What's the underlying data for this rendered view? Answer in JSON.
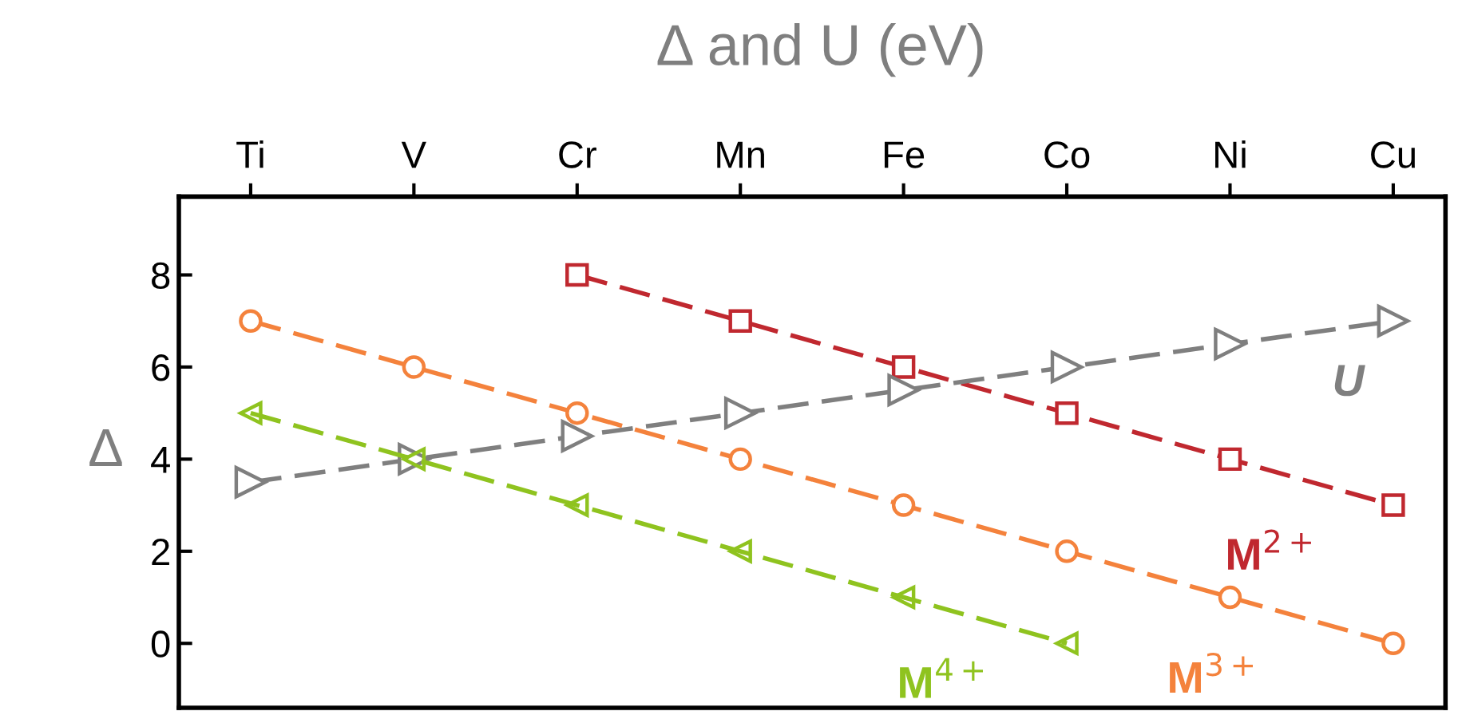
{
  "chart_data": {
    "type": "line",
    "title": "Δ and U (eV)",
    "ylabel": "Δ",
    "categories": [
      "Ti",
      "V",
      "Cr",
      "Mn",
      "Fe",
      "Co",
      "Ni",
      "Cu"
    ],
    "ylim": [
      -1.4,
      9.7
    ],
    "yticks": [
      0,
      2,
      4,
      6,
      8
    ],
    "grid": false,
    "legend": false,
    "line_style": "dashed",
    "series": [
      {
        "name": "M$^{2+}$",
        "color": "#c0282f",
        "marker": "square",
        "values": [
          null,
          null,
          8,
          7,
          6,
          5,
          4,
          3
        ]
      },
      {
        "name": "M$^{3+}$",
        "color": "#f4823c",
        "marker": "circle",
        "values": [
          7,
          6,
          5,
          4,
          3,
          2,
          1,
          0
        ]
      },
      {
        "name": "M$^{4+}$",
        "color": "#8fc31f",
        "marker": "triangle_left",
        "values": [
          5,
          4,
          3,
          2,
          1,
          0,
          null,
          null
        ]
      },
      {
        "name": "U",
        "color": "#7f7f7f",
        "marker": "triangle_right",
        "values": [
          3.5,
          4,
          4.5,
          5,
          5.5,
          6,
          6.5,
          7
        ]
      }
    ]
  }
}
